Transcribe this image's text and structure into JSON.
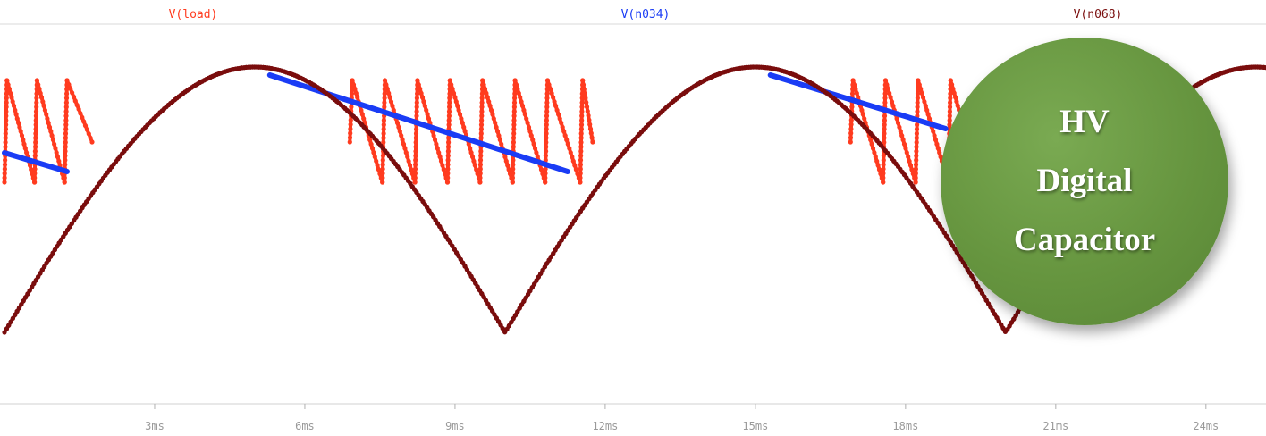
{
  "chart_data": {
    "type": "line",
    "xlabel": "",
    "ylabel": "",
    "x_unit": "ms",
    "xlim": [
      0,
      25.2
    ],
    "ylim": [
      -0.05,
      1.05
    ],
    "x_ticks": [
      3,
      6,
      9,
      12,
      15,
      18,
      21,
      24
    ],
    "tick_labels": [
      "3ms",
      "6ms",
      "9ms",
      "12ms",
      "15ms",
      "18ms",
      "21ms",
      "24ms"
    ],
    "grid": false,
    "legend_placement": "top",
    "series": [
      {
        "name": "V(load)",
        "color": "#ff3b1f",
        "style": "dotted-line",
        "segments": [
          {
            "x": [
              0,
              0.05,
              0.6,
              0.65,
              1.2,
              1.25,
              1.75
            ],
            "y": [
              0.57,
              0.95,
              0.57,
              0.95,
              0.57,
              0.95,
              0.72
            ]
          },
          {
            "x": [
              6.9,
              6.95,
              7.55,
              7.6,
              8.2,
              8.25,
              8.85,
              8.9,
              9.5,
              9.55,
              10.15,
              10.2,
              10.8,
              10.85,
              11.5,
              11.55,
              11.75
            ],
            "y": [
              0.72,
              0.95,
              0.57,
              0.95,
              0.57,
              0.95,
              0.57,
              0.95,
              0.57,
              0.95,
              0.57,
              0.95,
              0.57,
              0.95,
              0.57,
              0.95,
              0.72
            ]
          },
          {
            "x": [
              16.9,
              16.95,
              17.55,
              17.6,
              18.2,
              18.25,
              18.85,
              18.9,
              19.4
            ],
            "y": [
              0.72,
              0.95,
              0.57,
              0.95,
              0.57,
              0.95,
              0.57,
              0.95,
              0.62
            ]
          }
        ]
      },
      {
        "name": "V(n034)",
        "color": "#1a3cf5",
        "style": "solid",
        "segments": [
          {
            "x": [
              0,
              1.25
            ],
            "y": [
              0.68,
              0.61
            ]
          },
          {
            "x": [
              5.3,
              11.25
            ],
            "y": [
              0.97,
              0.61
            ]
          },
          {
            "x": [
              15.3,
              18.8
            ],
            "y": [
              0.97,
              0.77
            ]
          }
        ]
      },
      {
        "name": "V(n068)",
        "color": "#7a0d0d",
        "style": "dotted-line",
        "function": "abs_sine",
        "period_ms": 20,
        "peak": 1.0,
        "trough": 0.01,
        "x_range": [
          0,
          25.2
        ]
      }
    ]
  },
  "badge": {
    "lines": [
      "HV",
      "Digital",
      "Capacitor"
    ],
    "color": "#66953f"
  }
}
